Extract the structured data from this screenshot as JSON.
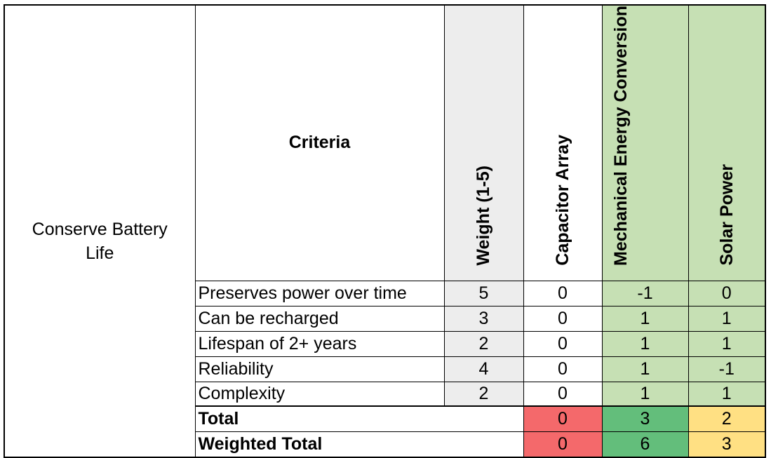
{
  "objective": "Conserve Battery Life",
  "criteria_header": "Criteria",
  "headers": {
    "weight": "Weight (1-5)",
    "capacitor": "Capacitor Array",
    "mechanical": "Mechanical Energy Conversion",
    "solar": "Solar Power"
  },
  "rows": [
    {
      "criterion": "Preserves power over time",
      "weight": "5",
      "capacitor": "0",
      "mechanical": "-1",
      "solar": "0"
    },
    {
      "criterion": "Can be recharged",
      "weight": "3",
      "capacitor": "0",
      "mechanical": "1",
      "solar": "1"
    },
    {
      "criterion": "Lifespan of 2+ years",
      "weight": "2",
      "capacitor": "0",
      "mechanical": "1",
      "solar": "1"
    },
    {
      "criterion": "Reliability",
      "weight": "4",
      "capacitor": "0",
      "mechanical": "1",
      "solar": "-1"
    },
    {
      "criterion": "Complexity",
      "weight": "2",
      "capacitor": "0",
      "mechanical": "1",
      "solar": "1"
    }
  ],
  "total": {
    "label": "Total",
    "capacitor": "0",
    "mechanical": "3",
    "solar": "2"
  },
  "weighted_total": {
    "label": "Weighted Total",
    "capacitor": "0",
    "mechanical": "6",
    "solar": "3"
  },
  "colors": {
    "header_gray": "#ededed",
    "option_green": "#c6e0b4",
    "low_red": "#f4696b",
    "high_green": "#63be7b",
    "mid_yellow": "#ffe083"
  }
}
